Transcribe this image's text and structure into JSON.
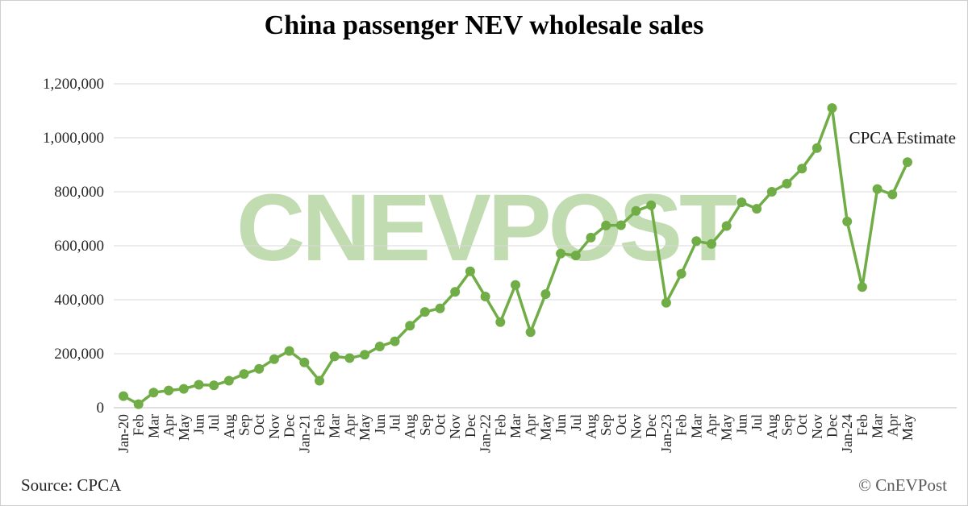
{
  "page": {
    "watermark": "CNEVPOST",
    "source": "Source: CPCA",
    "copyright": "© CnEVPost"
  },
  "chart_data": {
    "type": "line",
    "title": "China passenger NEV wholesale sales",
    "annotation": "CPCA Estimate",
    "legend": "none",
    "grid": "horizontal",
    "line_color": "#70AD47",
    "marker": "circle",
    "ylim": [
      0,
      1200000
    ],
    "y_ticks": [
      0,
      200000,
      400000,
      600000,
      800000,
      1000000,
      1200000
    ],
    "y_tick_labels": [
      "0",
      "200,000",
      "400,000",
      "600,000",
      "800,000",
      "1,000,000",
      "1,200,000"
    ],
    "categories": [
      "Jan-20",
      "Feb",
      "Mar",
      "Apr",
      "May",
      "Jun",
      "Jul",
      "Aug",
      "Sep",
      "Oct",
      "Nov",
      "Dec",
      "Jan-21",
      "Feb",
      "Mar",
      "Apr",
      "May",
      "Jun",
      "Jul",
      "Aug",
      "Sep",
      "Oct",
      "Nov",
      "Dec",
      "Jan-22",
      "Feb",
      "Mar",
      "Apr",
      "May",
      "Jun",
      "Jul",
      "Aug",
      "Sep",
      "Oct",
      "Nov",
      "Dec",
      "Jan-23",
      "Feb",
      "Mar",
      "Apr",
      "May",
      "Jun",
      "Jul",
      "Aug",
      "Sep",
      "Oct",
      "Nov",
      "Dec",
      "Jan-24",
      "Feb",
      "Mar",
      "Apr",
      "May"
    ],
    "values": [
      43000,
      13000,
      56000,
      64000,
      70000,
      85000,
      83000,
      100000,
      125000,
      144000,
      180000,
      210000,
      168000,
      100000,
      190000,
      184000,
      196000,
      227000,
      246000,
      304000,
      355000,
      368000,
      429000,
      505000,
      412000,
      317000,
      455000,
      280000,
      421000,
      571000,
      564000,
      630000,
      675000,
      676000,
      729000,
      750000,
      389000,
      496000,
      617000,
      607000,
      673000,
      761000,
      737000,
      800000,
      830000,
      886000,
      962000,
      1110000,
      690000,
      447000,
      810000,
      790000,
      910000
    ]
  }
}
